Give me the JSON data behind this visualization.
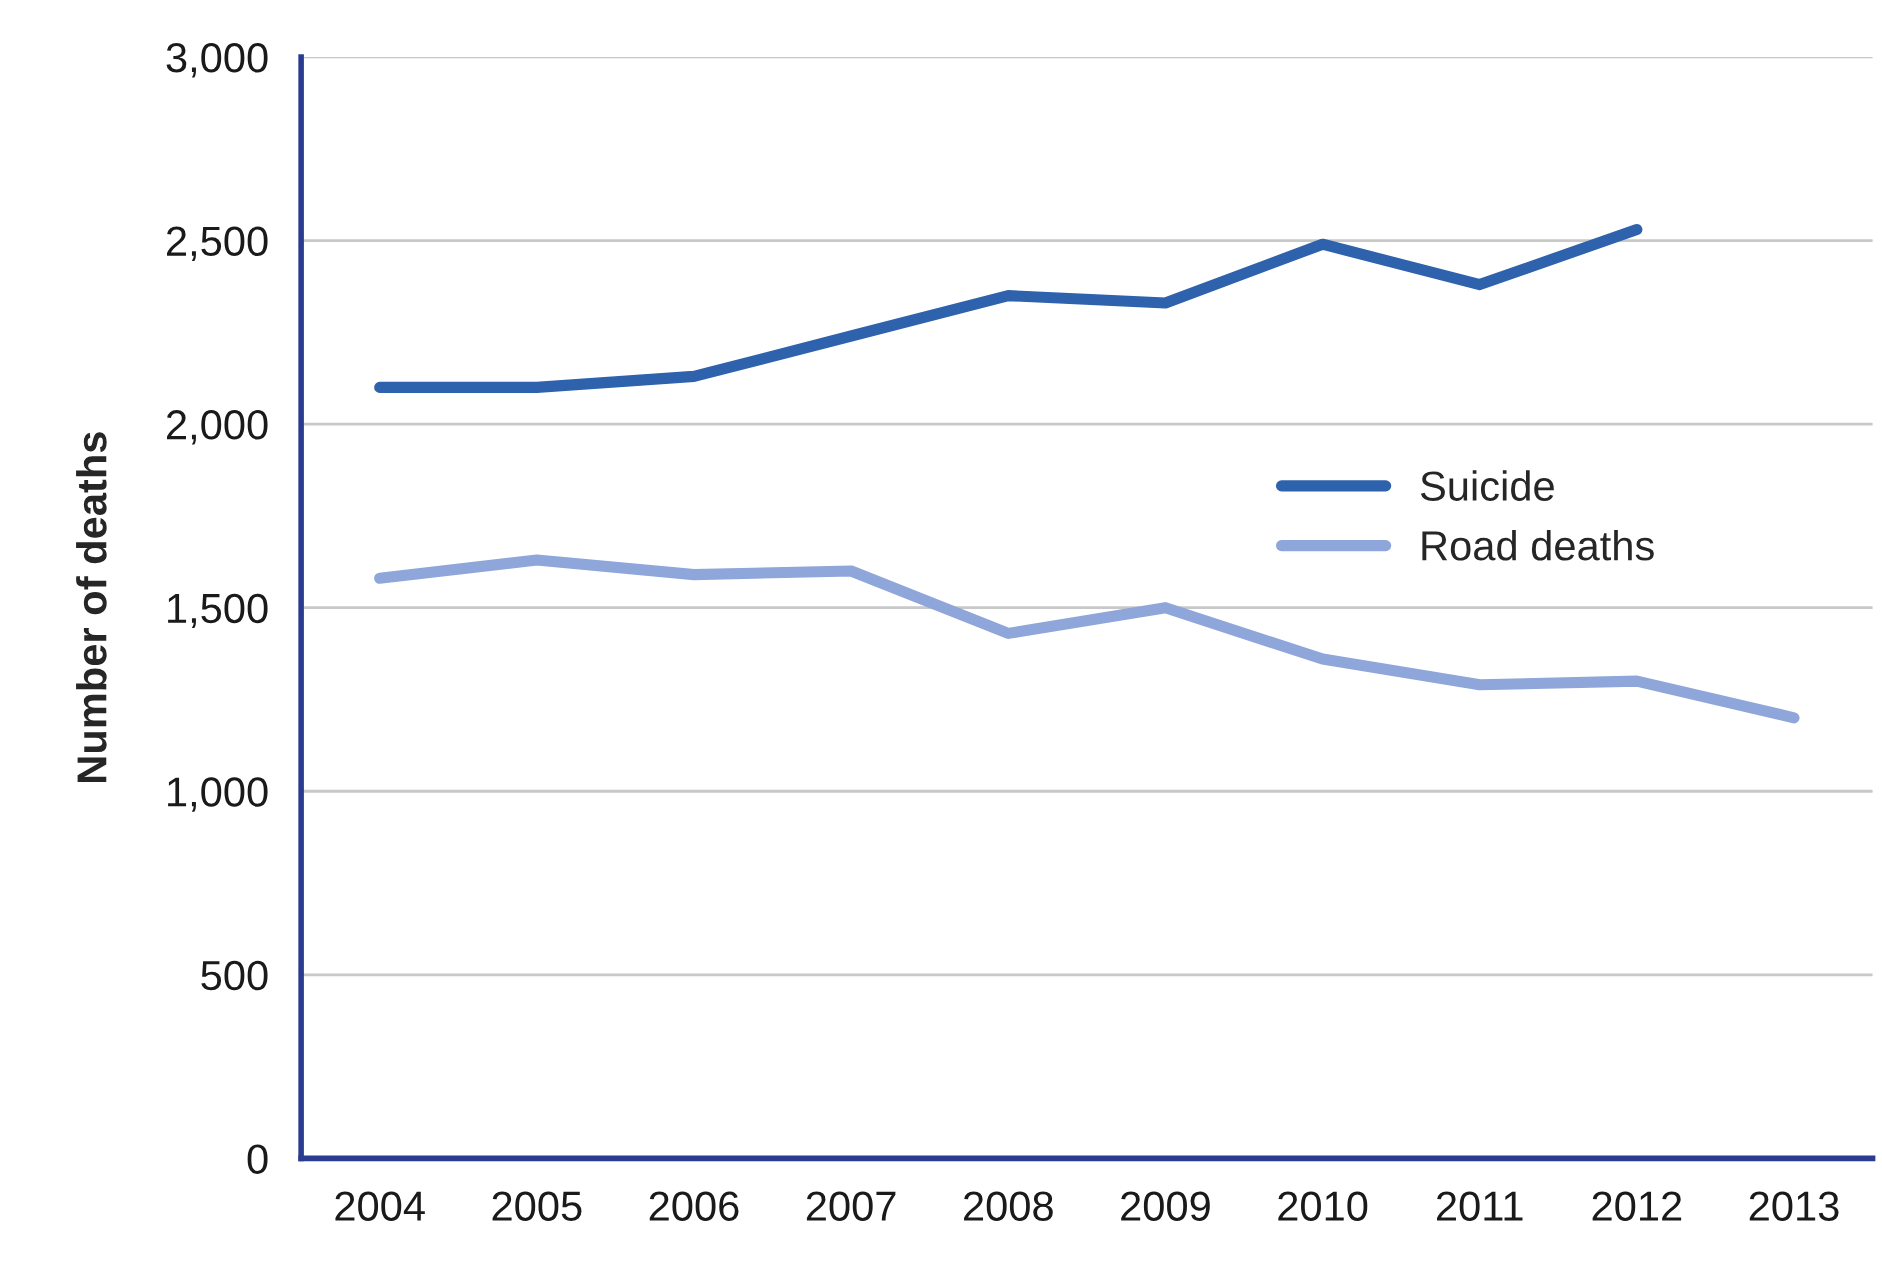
{
  "chart_data": {
    "type": "line",
    "ylabel": "Number of deaths",
    "categories": [
      "2004",
      "2005",
      "2006",
      "2007",
      "2008",
      "2009",
      "2010",
      "2011",
      "2012",
      "2013"
    ],
    "series": [
      {
        "name": "Suicide",
        "color": "#2f62ac",
        "values": [
          2100,
          2100,
          2130,
          2240,
          2350,
          2330,
          2490,
          2380,
          2530,
          null
        ]
      },
      {
        "name": "Road deaths",
        "color": "#8ea6da",
        "values": [
          1580,
          1630,
          1590,
          1600,
          1430,
          1500,
          1360,
          1290,
          1300,
          1200
        ]
      }
    ],
    "ylim": [
      0,
      3000
    ],
    "yticks": [
      {
        "value": 0,
        "label": "0"
      },
      {
        "value": 500,
        "label": "500"
      },
      {
        "value": 1000,
        "label": "1,000"
      },
      {
        "value": 1500,
        "label": "1,500"
      },
      {
        "value": 2000,
        "label": "2,000"
      },
      {
        "value": 2500,
        "label": "2,500"
      },
      {
        "value": 3000,
        "label": "3,000"
      }
    ],
    "grid": "y",
    "legend": "right",
    "marker": "none",
    "line_style": "solid"
  }
}
